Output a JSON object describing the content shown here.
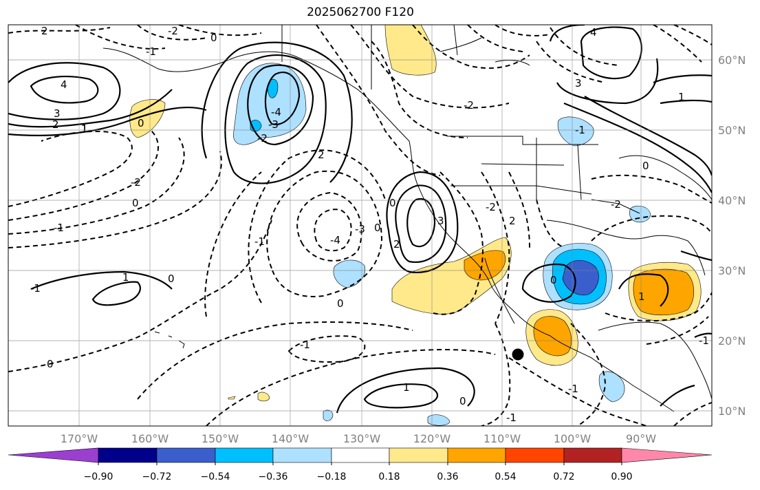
{
  "title": "2025062700 F120",
  "longitude_labels": [
    "170°W",
    "160°W",
    "150°W",
    "140°W",
    "130°W",
    "120°W",
    "110°W",
    "100°W",
    "90°W"
  ],
  "latitude_labels": [
    "60°N",
    "50°N",
    "40°N",
    "30°N",
    "20°N",
    "10°N"
  ],
  "colorbar": {
    "tick_labels": [
      "−0.90",
      "−0.72",
      "−0.54",
      "−0.36",
      "−0.18",
      "0.18",
      "0.36",
      "0.54",
      "0.72",
      "0.90"
    ],
    "colors": [
      "#9b3fd1",
      "#00008b",
      "#3a5fcd",
      "#00bfff",
      "#aee0ff",
      "#ffffff",
      "#ffe98a",
      "#ffa500",
      "#ff4500",
      "#b22222",
      "#ff88aa"
    ]
  },
  "contour_labels": [
    "2",
    "-2",
    "-1",
    "0",
    "4",
    "3",
    "2",
    "1",
    "0",
    "-4",
    "-3",
    "-2",
    "1",
    "0",
    "-1",
    "2",
    "-2",
    "-1",
    "0",
    "3",
    "2",
    "0",
    "-4",
    "-3",
    "0",
    "0",
    "1",
    "1",
    "-1",
    "-1",
    "0",
    "1",
    "0",
    "0",
    "-2",
    "-1",
    "4",
    "3",
    "-2",
    "2",
    "-2",
    "1",
    "0",
    "-1",
    "-1",
    "-1"
  ],
  "marker": "storm-center-dot"
}
